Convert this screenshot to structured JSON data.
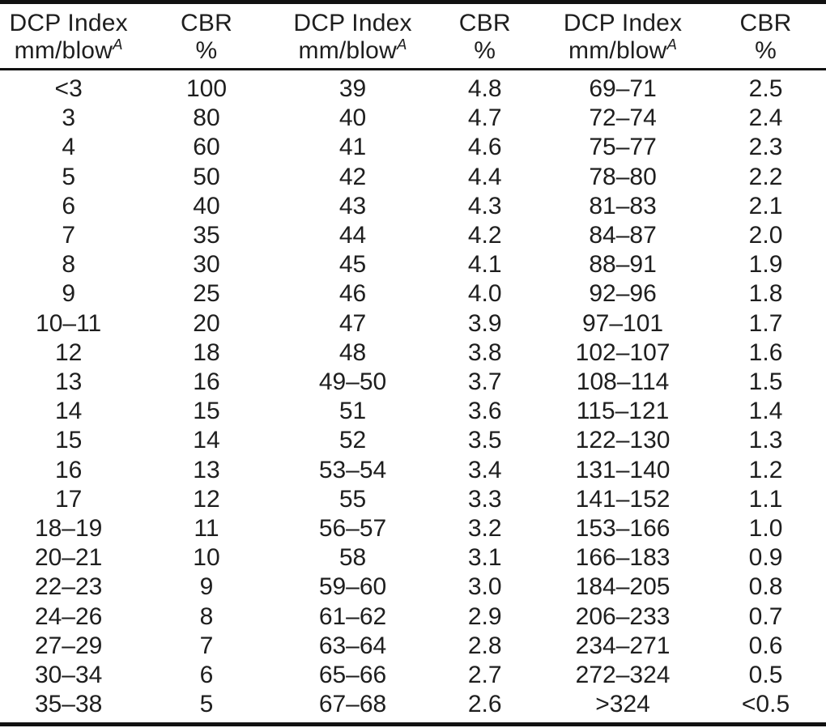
{
  "page": {
    "background_color": "#ffffff",
    "text_color": "#1e1e1e",
    "rule_color": "#111111"
  },
  "table": {
    "columns": [
      {
        "header_line1": "DCP Index",
        "header_line2": "mm/blow",
        "header_superscript": "A"
      },
      {
        "header_line1": "CBR",
        "header_line2": "%",
        "header_superscript": ""
      },
      {
        "header_line1": "DCP Index",
        "header_line2": "mm/blow",
        "header_superscript": "A"
      },
      {
        "header_line1": "CBR",
        "header_line2": "%",
        "header_superscript": ""
      },
      {
        "header_line1": "DCP Index",
        "header_line2": "mm/blow",
        "header_superscript": "A"
      },
      {
        "header_line1": "CBR",
        "header_line2": "%",
        "header_superscript": ""
      }
    ],
    "rows": [
      [
        "<3",
        "100",
        "39",
        "4.8",
        "69–71",
        "2.5"
      ],
      [
        "3",
        "80",
        "40",
        "4.7",
        "72–74",
        "2.4"
      ],
      [
        "4",
        "60",
        "41",
        "4.6",
        "75–77",
        "2.3"
      ],
      [
        "5",
        "50",
        "42",
        "4.4",
        "78–80",
        "2.2"
      ],
      [
        "6",
        "40",
        "43",
        "4.3",
        "81–83",
        "2.1"
      ],
      [
        "7",
        "35",
        "44",
        "4.2",
        "84–87",
        "2.0"
      ],
      [
        "8",
        "30",
        "45",
        "4.1",
        "88–91",
        "1.9"
      ],
      [
        "9",
        "25",
        "46",
        "4.0",
        "92–96",
        "1.8"
      ],
      [
        "10–11",
        "20",
        "47",
        "3.9",
        "97–101",
        "1.7"
      ],
      [
        "12",
        "18",
        "48",
        "3.8",
        "102–107",
        "1.6"
      ],
      [
        "13",
        "16",
        "49–50",
        "3.7",
        "108–114",
        "1.5"
      ],
      [
        "14",
        "15",
        "51",
        "3.6",
        "115–121",
        "1.4"
      ],
      [
        "15",
        "14",
        "52",
        "3.5",
        "122–130",
        "1.3"
      ],
      [
        "16",
        "13",
        "53–54",
        "3.4",
        "131–140",
        "1.2"
      ],
      [
        "17",
        "12",
        "55",
        "3.3",
        "141–152",
        "1.1"
      ],
      [
        "18–19",
        "11",
        "56–57",
        "3.2",
        "153–166",
        "1.0"
      ],
      [
        "20–21",
        "10",
        "58",
        "3.1",
        "166–183",
        "0.9"
      ],
      [
        "22–23",
        "9",
        "59–60",
        "3.0",
        "184–205",
        "0.8"
      ],
      [
        "24–26",
        "8",
        "61–62",
        "2.9",
        "206–233",
        "0.7"
      ],
      [
        "27–29",
        "7",
        "63–64",
        "2.8",
        "234–271",
        "0.6"
      ],
      [
        "30–34",
        "6",
        "65–66",
        "2.7",
        "272–324",
        "0.5"
      ],
      [
        "35–38",
        "5",
        "67–68",
        "2.6",
        ">324",
        "<0.5"
      ]
    ]
  }
}
